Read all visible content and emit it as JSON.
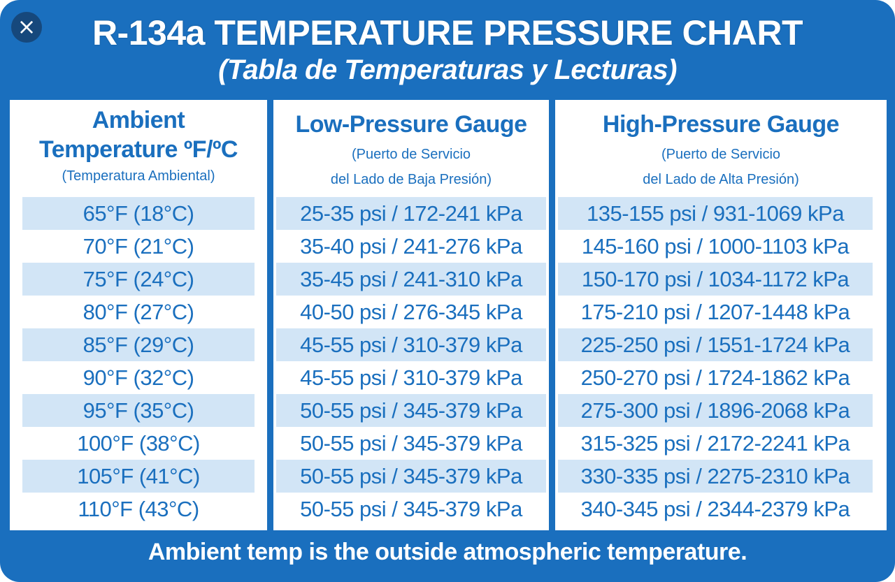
{
  "window": {
    "close_glyph": "×"
  },
  "header": {
    "title": "R-134a TEMPERATURE PRESSURE CHART",
    "subtitle": "(Tabla de Temperaturas y Lecturas)"
  },
  "columns": {
    "ambient": {
      "title_line1": "Ambient",
      "title_line2": "Temperature ºF/ºC",
      "subtitle": "(Temperatura Ambiental)"
    },
    "low": {
      "title": "Low-Pressure Gauge",
      "subtitle_line1": "(Puerto de Servicio",
      "subtitle_line2": "del Lado de Baja Presión)"
    },
    "high": {
      "title": "High-Pressure Gauge",
      "subtitle_line1": "(Puerto de Servicio",
      "subtitle_line2": "del Lado de Alta Presión)"
    }
  },
  "rows": [
    {
      "ambient": "65°F (18°C)",
      "low": "25-35 psi / 172-241 kPa",
      "high": "135-155 psi / 931-1069 kPa"
    },
    {
      "ambient": "70°F (21°C)",
      "low": "35-40 psi / 241-276 kPa",
      "high": "145-160 psi / 1000-1103 kPa"
    },
    {
      "ambient": "75°F (24°C)",
      "low": "35-45 psi / 241-310 kPa",
      "high": "150-170 psi / 1034-1172 kPa"
    },
    {
      "ambient": "80°F (27°C)",
      "low": "40-50 psi / 276-345 kPa",
      "high": "175-210 psi / 1207-1448 kPa"
    },
    {
      "ambient": "85°F (29°C)",
      "low": "45-55 psi / 310-379 kPa",
      "high": "225-250 psi / 1551-1724 kPa"
    },
    {
      "ambient": "90°F (32°C)",
      "low": "45-55 psi / 310-379 kPa",
      "high": "250-270 psi / 1724-1862 kPa"
    },
    {
      "ambient": "95°F (35°C)",
      "low": "50-55 psi / 345-379 kPa",
      "high": "275-300 psi / 1896-2068 kPa"
    },
    {
      "ambient": "100°F (38°C)",
      "low": "50-55 psi / 345-379 kPa",
      "high": "315-325 psi / 2172-2241 kPa"
    },
    {
      "ambient": "105°F (41°C)",
      "low": "50-55 psi / 345-379 kPa",
      "high": "330-335 psi / 2275-2310 kPa"
    },
    {
      "ambient": "110°F (43°C)",
      "low": "50-55 psi / 345-379 kPa",
      "high": "340-345 psi / 2344-2379 kPa"
    }
  ],
  "footer": {
    "note": "Ambient temp is the outside atmospheric temperature."
  },
  "colors": {
    "brand_blue": "#1a6fbe",
    "row_shade": "#d2e5f6",
    "text_white": "#ffffff"
  }
}
